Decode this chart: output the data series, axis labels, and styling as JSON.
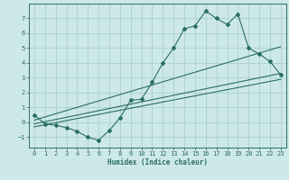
{
  "xlabel": "Humidex (Indice chaleur)",
  "bg_color": "#cde8e8",
  "grid_color": "#aacfcf",
  "line_color": "#2a6e65",
  "xlim": [
    -0.5,
    23.5
  ],
  "ylim": [
    -1.7,
    8.0
  ],
  "xticks": [
    0,
    1,
    2,
    3,
    4,
    5,
    6,
    7,
    8,
    9,
    10,
    11,
    12,
    13,
    14,
    15,
    16,
    17,
    18,
    19,
    20,
    21,
    22,
    23
  ],
  "yticks": [
    -1,
    0,
    1,
    2,
    3,
    4,
    5,
    6,
    7
  ],
  "curve_x": [
    0,
    1,
    2,
    3,
    4,
    5,
    6,
    7,
    8,
    9,
    10,
    11,
    12,
    13,
    14,
    15,
    16,
    17,
    18,
    19,
    20,
    21,
    22,
    23
  ],
  "curve_y": [
    0.5,
    -0.1,
    -0.2,
    -0.35,
    -0.6,
    -1.0,
    -1.2,
    -0.55,
    0.3,
    1.5,
    1.55,
    2.7,
    4.0,
    5.0,
    6.3,
    6.5,
    7.5,
    7.0,
    6.6,
    7.3,
    5.0,
    4.6,
    4.1,
    3.2
  ],
  "line1_x": [
    0,
    23
  ],
  "line1_y": [
    0.15,
    5.1
  ],
  "line2_x": [
    0,
    23
  ],
  "line2_y": [
    -0.1,
    3.3
  ],
  "line3_x": [
    0,
    23
  ],
  "line3_y": [
    -0.3,
    2.9
  ]
}
